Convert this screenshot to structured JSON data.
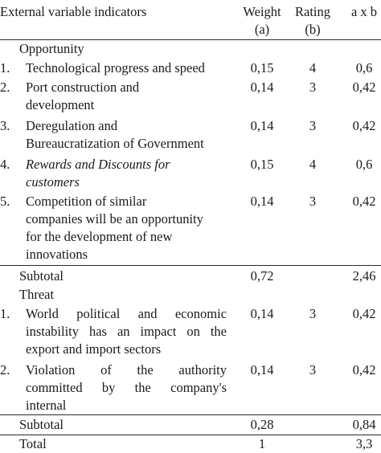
{
  "header": {
    "indicator": "External variable indicators",
    "weight": [
      "Weight",
      "(a)"
    ],
    "rating": [
      "Rating",
      "(b)"
    ],
    "product": "a x b"
  },
  "sections": [
    {
      "title": "Opportunity",
      "rows": [
        {
          "num": "1.",
          "lines": [
            "Technological progress and speed"
          ],
          "weight": "0,15",
          "rating": "4",
          "product": "0,6"
        },
        {
          "num": "2.",
          "lines": [
            "Port construction and",
            "development"
          ],
          "weight": "0,14",
          "rating": "3",
          "product": "0,42"
        },
        {
          "num": "3.",
          "lines": [
            "Deregulation and",
            "Bureaucratization of Government"
          ],
          "weight": "0,14",
          "rating": "3",
          "product": "0,42"
        },
        {
          "num": "4.",
          "lines": [
            "Rewards and Discounts for",
            "customers"
          ],
          "weight": "0,15",
          "rating": "4",
          "product": "0,6"
        },
        {
          "num": "5.",
          "lines": [
            "Competition of similar",
            "companies will be an opportunity",
            "for the development of new",
            "innovations"
          ],
          "weight": "0,14",
          "rating": "3",
          "product": "0,42"
        }
      ],
      "subtotal": {
        "label": "Subtotal",
        "weight": "0,72",
        "product": "2,46"
      }
    },
    {
      "title": "Threat",
      "rows": [
        {
          "num": "1.",
          "lines": [
            "World political and economic",
            "instability has an impact on the",
            "export and import sectors"
          ],
          "weight": "0,14",
          "rating": "3",
          "product": "0,42"
        },
        {
          "num": "2.",
          "lines": [
            "Violation of the authority",
            "committed by the company's",
            "internal"
          ],
          "weight": "0,14",
          "rating": "3",
          "product": "0,42"
        }
      ],
      "subtotal": {
        "label": "Subtotal",
        "weight": "0,28",
        "product": "0,84"
      }
    }
  ],
  "total": {
    "label": "Total",
    "weight": "1",
    "product": "3,3"
  }
}
